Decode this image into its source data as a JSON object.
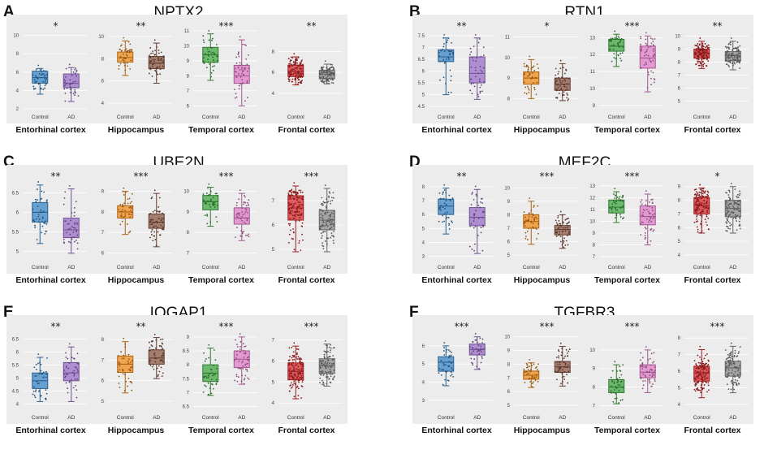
{
  "groups": [
    "Control",
    "AD"
  ],
  "colors": {
    "background": "#ececec",
    "Entorhinal cortex": [
      "#3a87c8",
      "#9a6fc8"
    ],
    "Hippocampus": [
      "#f08c1c",
      "#8c5846"
    ],
    "Temporal cortex": [
      "#42a843",
      "#e07cc8"
    ],
    "Frontal cortex": [
      "#d92a2c",
      "#8c8c8c"
    ]
  },
  "chart_data": [
    {
      "panel": "A",
      "title": "NPTX2",
      "type": "box",
      "subplots": [
        {
          "region": "Entorhinal cortex",
          "ylim": [
            2,
            10.5
          ],
          "ticks": [
            2,
            4,
            6,
            8,
            10
          ],
          "significance": "*",
          "boxes": [
            {
              "group": "Control",
              "min": 3.6,
              "q1": 4.8,
              "median": 5.4,
              "q3": 6.1,
              "max": 6.4,
              "n": 39
            },
            {
              "group": "AD",
              "min": 2.8,
              "q1": 4.3,
              "median": 4.8,
              "q3": 5.8,
              "max": 6.5,
              "n": 40
            }
          ]
        },
        {
          "region": "Hippocampus",
          "ylim": [
            3.5,
            10.5
          ],
          "ticks": [
            4,
            6,
            8,
            10
          ],
          "significance": "**",
          "boxes": [
            {
              "group": "Control",
              "min": 6.5,
              "q1": 7.7,
              "median": 8.1,
              "q3": 8.6,
              "max": 9.6,
              "n": 43
            },
            {
              "group": "AD",
              "min": 5.8,
              "q1": 7.1,
              "median": 7.6,
              "q3": 8.2,
              "max": 9.4,
              "n": 55
            }
          ]
        },
        {
          "region": "Temporal cortex",
          "ylim": [
            5.8,
            11
          ],
          "ticks": [
            6,
            7,
            8,
            9,
            10,
            11
          ],
          "significance": "***",
          "boxes": [
            {
              "group": "Control",
              "min": 7.7,
              "q1": 8.9,
              "median": 9.4,
              "q3": 9.9,
              "max": 10.8,
              "n": 39
            },
            {
              "group": "AD",
              "min": 6.0,
              "q1": 7.5,
              "median": 8.0,
              "q3": 8.7,
              "max": 10.4,
              "n": 52
            }
          ]
        },
        {
          "region": "Frontal cortex",
          "ylim": [
            2.5,
            10
          ],
          "ticks": [
            4,
            6,
            8
          ],
          "significance": "**",
          "boxes": [
            {
              "group": "Control",
              "min": 4.8,
              "q1": 5.6,
              "median": 6.1,
              "q3": 6.7,
              "max": 7.5,
              "n": 128
            },
            {
              "group": "AD",
              "min": 4.9,
              "q1": 5.4,
              "median": 5.8,
              "q3": 6.2,
              "max": 6.8,
              "n": 101
            }
          ]
        }
      ]
    },
    {
      "panel": "B",
      "title": "RTN1",
      "type": "box",
      "subplots": [
        {
          "region": "Entorhinal cortex",
          "ylim": [
            4.4,
            7.7
          ],
          "ticks": [
            4.5,
            5,
            5.5,
            6,
            6.5,
            7,
            7.5
          ],
          "significance": "**",
          "boxes": [
            {
              "group": "Control",
              "min": 5.0,
              "q1": 6.4,
              "median": 6.6,
              "q3": 6.9,
              "max": 7.4,
              "n": 39
            },
            {
              "group": "AD",
              "min": 4.8,
              "q1": 5.5,
              "median": 5.9,
              "q3": 6.6,
              "max": 7.4,
              "n": 40
            }
          ]
        },
        {
          "region": "Hippocampus",
          "ylim": [
            7.5,
            11.3
          ],
          "ticks": [
            8,
            9,
            10,
            11
          ],
          "significance": "*",
          "boxes": [
            {
              "group": "Control",
              "min": 8.0,
              "q1": 8.7,
              "median": 9.0,
              "q3": 9.3,
              "max": 9.9,
              "n": 43
            },
            {
              "group": "AD",
              "min": 7.9,
              "q1": 8.4,
              "median": 8.7,
              "q3": 9.0,
              "max": 9.7,
              "n": 55
            }
          ]
        },
        {
          "region": "Temporal cortex",
          "ylim": [
            8.8,
            13.4
          ],
          "ticks": [
            9,
            10,
            11,
            12,
            13
          ],
          "significance": "***",
          "boxes": [
            {
              "group": "Control",
              "min": 11.3,
              "q1": 12.2,
              "median": 12.5,
              "q3": 12.9,
              "max": 13.2,
              "n": 39
            },
            {
              "group": "AD",
              "min": 9.8,
              "q1": 11.2,
              "median": 11.8,
              "q3": 12.5,
              "max": 13.1,
              "n": 52
            }
          ]
        },
        {
          "region": "Frontal cortex",
          "ylim": [
            4.4,
            10.4
          ],
          "ticks": [
            5,
            6,
            7,
            8,
            9,
            10
          ],
          "significance": "**",
          "boxes": [
            {
              "group": "Control",
              "min": 7.5,
              "q1": 8.3,
              "median": 8.7,
              "q3": 9.0,
              "max": 9.6,
              "n": 128
            },
            {
              "group": "AD",
              "min": 7.4,
              "q1": 8.1,
              "median": 8.5,
              "q3": 8.8,
              "max": 9.6,
              "n": 101
            }
          ]
        }
      ]
    },
    {
      "panel": "C",
      "title": "UBE2N",
      "type": "box",
      "subplots": [
        {
          "region": "Entorhinal cortex",
          "ylim": [
            4.8,
            6.8
          ],
          "ticks": [
            5,
            5.5,
            6,
            6.5
          ],
          "significance": "**",
          "boxes": [
            {
              "group": "Control",
              "min": 5.2,
              "q1": 5.75,
              "median": 6.0,
              "q3": 6.25,
              "max": 6.7,
              "n": 39
            },
            {
              "group": "AD",
              "min": 4.95,
              "q1": 5.35,
              "median": 5.55,
              "q3": 5.85,
              "max": 6.6,
              "n": 40
            }
          ]
        },
        {
          "region": "Hippocampus",
          "ylim": [
            5.7,
            9.5
          ],
          "ticks": [
            6,
            7,
            8,
            9
          ],
          "significance": "***",
          "boxes": [
            {
              "group": "Control",
              "min": 6.9,
              "q1": 7.7,
              "median": 8.0,
              "q3": 8.3,
              "max": 9.0,
              "n": 43
            },
            {
              "group": "AD",
              "min": 6.3,
              "q1": 7.2,
              "median": 7.5,
              "q3": 7.9,
              "max": 8.9,
              "n": 55
            }
          ]
        },
        {
          "region": "Temporal cortex",
          "ylim": [
            6.7,
            10.5
          ],
          "ticks": [
            7,
            8,
            9,
            10
          ],
          "significance": "***",
          "boxes": [
            {
              "group": "Control",
              "min": 8.3,
              "q1": 9.1,
              "median": 9.5,
              "q3": 9.8,
              "max": 10.2,
              "n": 39
            },
            {
              "group": "AD",
              "min": 7.6,
              "q1": 8.4,
              "median": 8.7,
              "q3": 9.2,
              "max": 9.9,
              "n": 52
            }
          ]
        },
        {
          "region": "Frontal cortex",
          "ylim": [
            4.6,
            7.8
          ],
          "ticks": [
            5,
            6,
            7
          ],
          "significance": "***",
          "boxes": [
            {
              "group": "Control",
              "min": 4.9,
              "q1": 6.2,
              "median": 6.7,
              "q3": 7.2,
              "max": 7.6,
              "n": 128
            },
            {
              "group": "AD",
              "min": 4.9,
              "q1": 5.8,
              "median": 6.2,
              "q3": 6.6,
              "max": 7.5,
              "n": 101
            }
          ]
        }
      ]
    },
    {
      "panel": "D",
      "title": "MEF2C",
      "type": "box",
      "subplots": [
        {
          "region": "Entorhinal cortex",
          "ylim": [
            2.8,
            8.4
          ],
          "ticks": [
            3,
            4,
            5,
            6,
            7,
            8
          ],
          "significance": "**",
          "boxes": [
            {
              "group": "Control",
              "min": 4.6,
              "q1": 6.0,
              "median": 6.6,
              "q3": 7.1,
              "max": 7.9,
              "n": 39
            },
            {
              "group": "AD",
              "min": 3.2,
              "q1": 5.2,
              "median": 5.8,
              "q3": 6.5,
              "max": 7.8,
              "n": 40
            }
          ]
        },
        {
          "region": "Hippocampus",
          "ylim": [
            4.7,
            10.5
          ],
          "ticks": [
            5,
            6,
            7,
            8,
            9,
            10
          ],
          "significance": "***",
          "boxes": [
            {
              "group": "Control",
              "min": 5.8,
              "q1": 7.0,
              "median": 7.5,
              "q3": 8.0,
              "max": 9.0,
              "n": 43
            },
            {
              "group": "AD",
              "min": 5.5,
              "q1": 6.5,
              "median": 6.9,
              "q3": 7.2,
              "max": 8.0,
              "n": 55
            }
          ]
        },
        {
          "region": "Temporal cortex",
          "ylim": [
            6.8,
            13.4
          ],
          "ticks": [
            7,
            8,
            9,
            10,
            11,
            12,
            13
          ],
          "significance": "***",
          "boxes": [
            {
              "group": "Control",
              "min": 9.9,
              "q1": 10.7,
              "median": 11.2,
              "q3": 11.8,
              "max": 12.5,
              "n": 39
            },
            {
              "group": "AD",
              "min": 8.0,
              "q1": 9.7,
              "median": 10.4,
              "q3": 11.3,
              "max": 12.3,
              "n": 52
            }
          ]
        },
        {
          "region": "Frontal cortex",
          "ylim": [
            3.7,
            9.4
          ],
          "ticks": [
            4,
            5,
            6,
            7,
            8,
            9
          ],
          "significance": "*",
          "boxes": [
            {
              "group": "Control",
              "min": 5.6,
              "q1": 7.0,
              "median": 7.6,
              "q3": 8.2,
              "max": 8.9,
              "n": 128
            },
            {
              "group": "AD",
              "min": 5.6,
              "q1": 6.8,
              "median": 7.4,
              "q3": 8.0,
              "max": 9.0,
              "n": 101
            }
          ]
        }
      ]
    },
    {
      "panel": "E",
      "title": "IQGAP1",
      "type": "box",
      "subplots": [
        {
          "region": "Entorhinal cortex",
          "ylim": [
            3.8,
            6.8
          ],
          "ticks": [
            4,
            4.5,
            5,
            5.5,
            6,
            6.5
          ],
          "significance": "**",
          "boxes": [
            {
              "group": "Control",
              "min": 4.1,
              "q1": 4.6,
              "median": 4.9,
              "q3": 5.2,
              "max": 5.8,
              "n": 39
            },
            {
              "group": "AD",
              "min": 4.1,
              "q1": 4.9,
              "median": 5.2,
              "q3": 5.6,
              "max": 6.2,
              "n": 40
            }
          ]
        },
        {
          "region": "Hippocampus",
          "ylim": [
            4.6,
            8.4
          ],
          "ticks": [
            5,
            6,
            7,
            8
          ],
          "significance": "**",
          "boxes": [
            {
              "group": "Control",
              "min": 5.4,
              "q1": 6.4,
              "median": 6.8,
              "q3": 7.2,
              "max": 7.9,
              "n": 43
            },
            {
              "group": "AD",
              "min": 6.1,
              "q1": 6.8,
              "median": 7.1,
              "q3": 7.5,
              "max": 8.1,
              "n": 55
            }
          ]
        },
        {
          "region": "Temporal cortex",
          "ylim": [
            6.4,
            9.2
          ],
          "ticks": [
            6.5,
            7,
            7.5,
            8,
            8.5,
            9
          ],
          "significance": "***",
          "boxes": [
            {
              "group": "Control",
              "min": 6.9,
              "q1": 7.4,
              "median": 7.7,
              "q3": 8.0,
              "max": 8.6,
              "n": 39
            },
            {
              "group": "AD",
              "min": 7.3,
              "q1": 7.9,
              "median": 8.2,
              "q3": 8.5,
              "max": 9.0,
              "n": 52
            }
          ]
        },
        {
          "region": "Frontal cortex",
          "ylim": [
            3.7,
            7.4
          ],
          "ticks": [
            4,
            5,
            6,
            7
          ],
          "significance": "***",
          "boxes": [
            {
              "group": "Control",
              "min": 4.2,
              "q1": 5.1,
              "median": 5.5,
              "q3": 5.9,
              "max": 6.7,
              "n": 128
            },
            {
              "group": "AD",
              "min": 4.8,
              "q1": 5.4,
              "median": 5.8,
              "q3": 6.1,
              "max": 6.8,
              "n": 101
            }
          ]
        }
      ]
    },
    {
      "panel": "F",
      "title": "TGFBR3",
      "type": "box",
      "subplots": [
        {
          "region": "Entorhinal cortex",
          "ylim": [
            2.5,
            6.8
          ],
          "ticks": [
            3,
            4,
            5,
            6
          ],
          "significance": "***",
          "boxes": [
            {
              "group": "Control",
              "min": 3.8,
              "q1": 4.6,
              "median": 5.1,
              "q3": 5.4,
              "max": 6.0,
              "n": 39
            },
            {
              "group": "AD",
              "min": 4.7,
              "q1": 5.5,
              "median": 5.8,
              "q3": 6.1,
              "max": 6.5,
              "n": 40
            }
          ]
        },
        {
          "region": "Hippocampus",
          "ylim": [
            4.7,
            10.4
          ],
          "ticks": [
            5,
            6,
            7,
            8,
            9,
            10
          ],
          "significance": "***",
          "boxes": [
            {
              "group": "Control",
              "min": 6.3,
              "q1": 6.9,
              "median": 7.2,
              "q3": 7.5,
              "max": 8.1,
              "n": 43
            },
            {
              "group": "AD",
              "min": 6.4,
              "q1": 7.4,
              "median": 7.8,
              "q3": 8.2,
              "max": 9.3,
              "n": 55
            }
          ]
        },
        {
          "region": "Temporal cortex",
          "ylim": [
            6.8,
            11
          ],
          "ticks": [
            7,
            8,
            9,
            10
          ],
          "significance": "***",
          "boxes": [
            {
              "group": "Control",
              "min": 7.1,
              "q1": 7.7,
              "median": 8.0,
              "q3": 8.4,
              "max": 9.2,
              "n": 39
            },
            {
              "group": "AD",
              "min": 7.7,
              "q1": 8.5,
              "median": 8.8,
              "q3": 9.2,
              "max": 10.0,
              "n": 52
            }
          ]
        },
        {
          "region": "Frontal cortex",
          "ylim": [
            3.7,
            8.4
          ],
          "ticks": [
            4,
            5,
            6,
            7,
            8
          ],
          "significance": "***",
          "boxes": [
            {
              "group": "Control",
              "min": 4.4,
              "q1": 5.4,
              "median": 5.9,
              "q3": 6.3,
              "max": 7.3,
              "n": 128
            },
            {
              "group": "AD",
              "min": 4.7,
              "q1": 5.7,
              "median": 6.2,
              "q3": 6.6,
              "max": 7.5,
              "n": 101
            }
          ]
        }
      ]
    }
  ]
}
